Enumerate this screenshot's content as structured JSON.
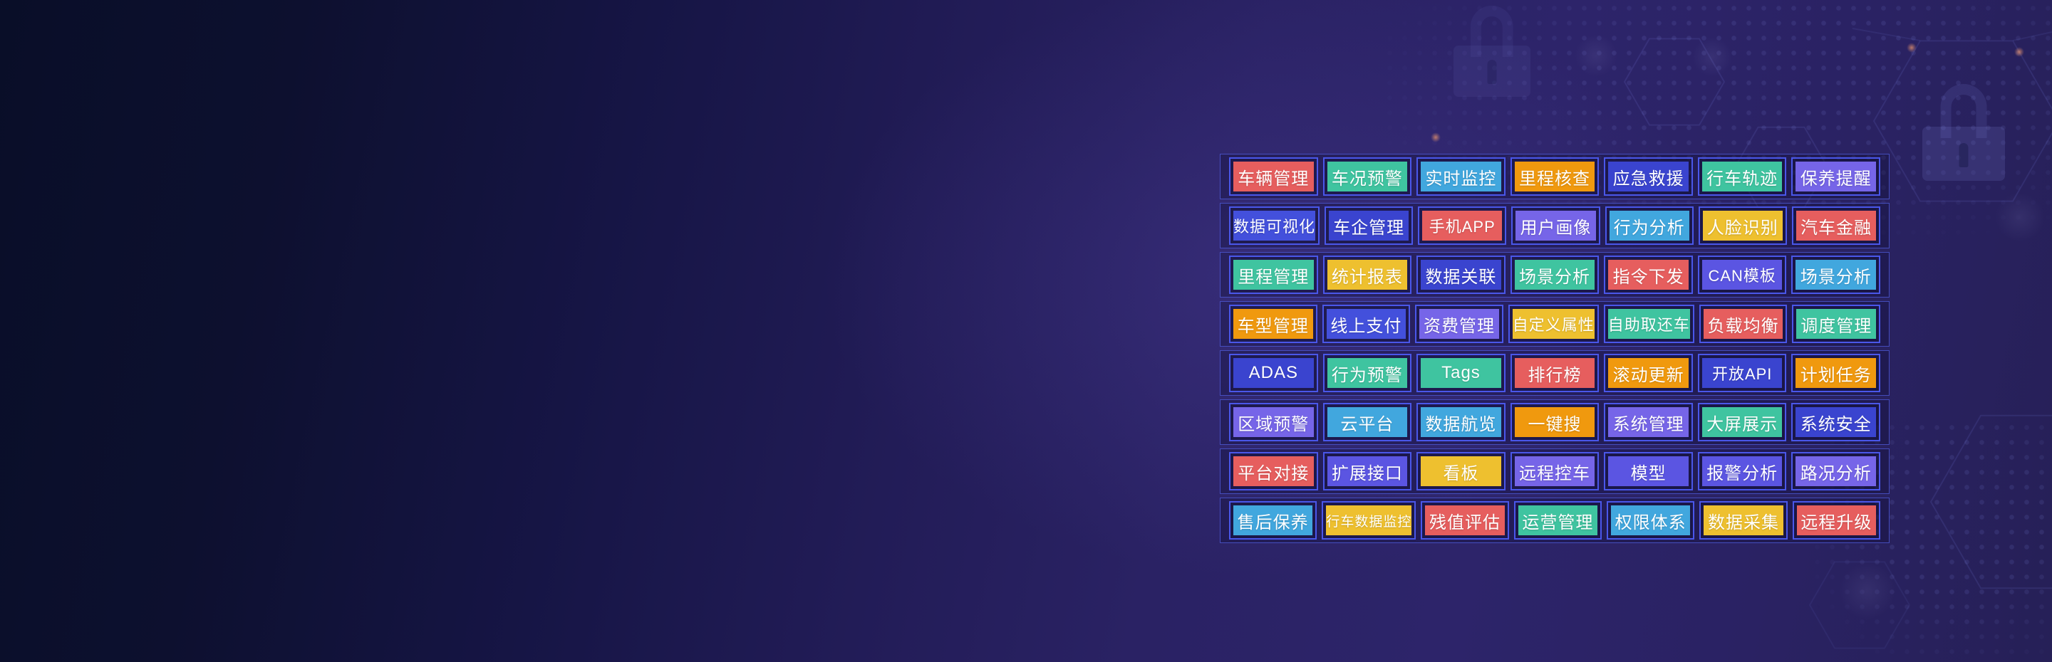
{
  "palette": {
    "red": "#e65e5e",
    "teal": "#3fc4a0",
    "lblue": "#41a7de",
    "orange": "#f0990e",
    "indigo": "#3a44cf",
    "blue": "#4350dc",
    "violet": "#5b55e2",
    "purple": "#7665e8",
    "yellow": "#eec02f"
  },
  "frame_colors": {
    "row_border": "#5462e8",
    "cell_border": "#4a57ea"
  },
  "decor": {
    "watermark_icons": [
      "lock-icon",
      "lock-icon"
    ],
    "patterns": [
      "dot-grid-pattern",
      "hexagon-pattern"
    ]
  },
  "grid": {
    "rows": [
      {
        "cells": [
          {
            "label": "车辆管理",
            "color": "red"
          },
          {
            "label": "车况预警",
            "color": "teal"
          },
          {
            "label": "实时监控",
            "color": "lblue"
          },
          {
            "label": "里程核查",
            "color": "orange"
          },
          {
            "label": "应急救援",
            "color": "indigo"
          },
          {
            "label": "行车轨迹",
            "color": "teal"
          },
          {
            "label": "保养提醒",
            "color": "purple"
          }
        ]
      },
      {
        "cells": [
          {
            "label": "数据可视化",
            "color": "blue"
          },
          {
            "label": "车企管理",
            "color": "indigo"
          },
          {
            "label": "手机APP",
            "color": "red"
          },
          {
            "label": "用户画像",
            "color": "purple"
          },
          {
            "label": "行为分析",
            "color": "lblue"
          },
          {
            "label": "人脸识别",
            "color": "yellow"
          },
          {
            "label": "汽车金融",
            "color": "red"
          }
        ]
      },
      {
        "cells": [
          {
            "label": "里程管理",
            "color": "teal"
          },
          {
            "label": "统计报表",
            "color": "yellow"
          },
          {
            "label": "数据关联",
            "color": "indigo"
          },
          {
            "label": "场景分析",
            "color": "teal"
          },
          {
            "label": "指令下发",
            "color": "red"
          },
          {
            "label": "CAN模板",
            "color": "violet"
          },
          {
            "label": "场景分析",
            "color": "lblue"
          }
        ]
      },
      {
        "cells": [
          {
            "label": "车型管理",
            "color": "orange"
          },
          {
            "label": "线上支付",
            "color": "blue"
          },
          {
            "label": "资费管理",
            "color": "purple"
          },
          {
            "label": "自定义属性",
            "color": "yellow"
          },
          {
            "label": "自助取还车",
            "color": "teal"
          },
          {
            "label": "负载均衡",
            "color": "red"
          },
          {
            "label": "调度管理",
            "color": "teal"
          }
        ]
      },
      {
        "cells": [
          {
            "label": "ADAS",
            "color": "indigo"
          },
          {
            "label": "行为预警",
            "color": "teal"
          },
          {
            "label": "Tags",
            "color": "teal"
          },
          {
            "label": "排行榜",
            "color": "red"
          },
          {
            "label": "滚动更新",
            "color": "orange"
          },
          {
            "label": "开放API",
            "color": "indigo"
          },
          {
            "label": "计划任务",
            "color": "orange"
          }
        ]
      },
      {
        "cells": [
          {
            "label": "区域预警",
            "color": "purple"
          },
          {
            "label": "云平台",
            "color": "lblue"
          },
          {
            "label": "数据航览",
            "color": "lblue"
          },
          {
            "label": "一键搜",
            "color": "orange"
          },
          {
            "label": "系统管理",
            "color": "purple"
          },
          {
            "label": "大屏展示",
            "color": "teal"
          },
          {
            "label": "系统安全",
            "color": "indigo"
          }
        ]
      },
      {
        "cells": [
          {
            "label": "平台对接",
            "color": "red"
          },
          {
            "label": "扩展接口",
            "color": "violet"
          },
          {
            "label": "看板",
            "color": "yellow"
          },
          {
            "label": "远程控车",
            "color": "purple"
          },
          {
            "label": "模型",
            "color": "violet"
          },
          {
            "label": "报警分析",
            "color": "violet"
          },
          {
            "label": "路况分析",
            "color": "purple"
          }
        ]
      },
      {
        "cells": [
          {
            "label": "售后保养",
            "color": "lblue"
          },
          {
            "label": "行车数据监控",
            "color": "yellow"
          },
          {
            "label": "残值评估",
            "color": "red"
          },
          {
            "label": "运营管理",
            "color": "teal"
          },
          {
            "label": "权限体系",
            "color": "lblue"
          },
          {
            "label": "数据采集",
            "color": "yellow"
          },
          {
            "label": "远程升级",
            "color": "red"
          }
        ]
      }
    ]
  }
}
